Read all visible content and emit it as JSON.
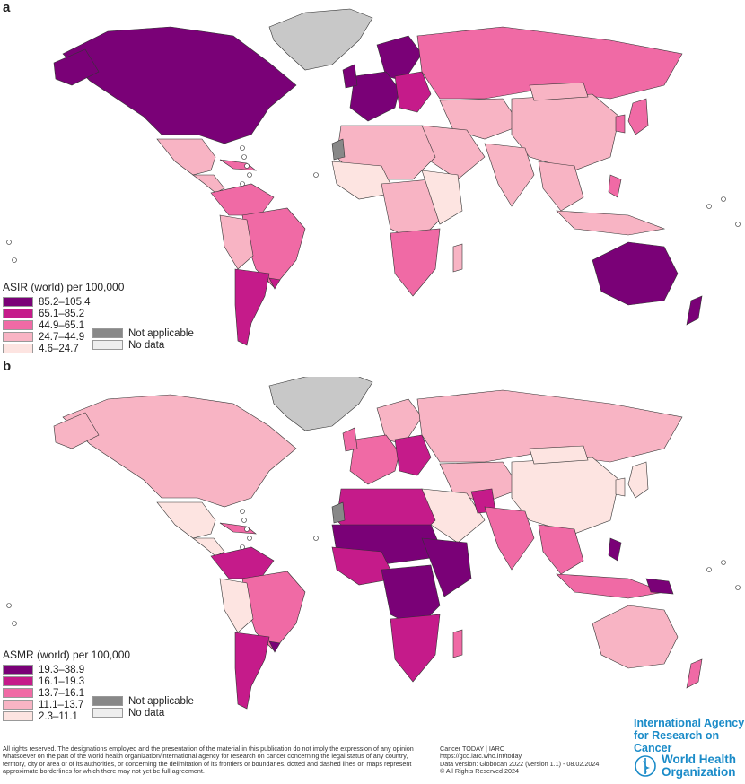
{
  "panels": [
    {
      "letter": "a",
      "legend": {
        "title": "ASIR (world) per 100,000",
        "classes": [
          {
            "label": "85.2–105.4",
            "color": "#7a0177"
          },
          {
            "label": "65.1–85.2",
            "color": "#c51b8a"
          },
          {
            "label": "44.9–65.1",
            "color": "#f06aa5"
          },
          {
            "label": "24.7–44.9",
            "color": "#f8b4c4"
          },
          {
            "label": "4.6–24.7",
            "color": "#fde4e1"
          }
        ],
        "special": [
          {
            "label": "Not applicable",
            "color": "#888888"
          },
          {
            "label": "No data",
            "color": "#eeeeee"
          }
        ]
      }
    },
    {
      "letter": "b",
      "legend": {
        "title": "ASMR (world) per 100,000",
        "classes": [
          {
            "label": "19.3–38.9",
            "color": "#7a0177"
          },
          {
            "label": "16.1–19.3",
            "color": "#c51b8a"
          },
          {
            "label": "13.7–16.1",
            "color": "#f06aa5"
          },
          {
            "label": "11.1–13.7",
            "color": "#f8b4c4"
          },
          {
            "label": "2.3–11.1",
            "color": "#fde4e1"
          }
        ],
        "special": [
          {
            "label": "Not applicable",
            "color": "#888888"
          },
          {
            "label": "No data",
            "color": "#eeeeee"
          }
        ]
      }
    }
  ],
  "footer": {
    "disclaimer": "All rights reserved. The designations employed and the presentation of the material in this publication do not imply the expression of any opinion whatsoever on the part of the world health organization/international agency for research on cancer concerning the legal status of any country, territory, city or area or of its authorities, or concerning the delimitation of its frontiers or boundaries. dotted and dashed lines on maps represent approximate borderlines for which there may not yet be full agreement.",
    "source_lines": [
      "Cancer TODAY | IARC",
      "https://gco.iarc.who.int/today",
      "Data version: Globocan 2022 (version 1.1) - 08.02.2024",
      "© All Rights Reserved 2024"
    ],
    "iarc_name_line1": "International Agency",
    "iarc_name_line2": "for Research on Cancer",
    "who_name_line1": "World Health",
    "who_name_line2": "Organization"
  }
}
